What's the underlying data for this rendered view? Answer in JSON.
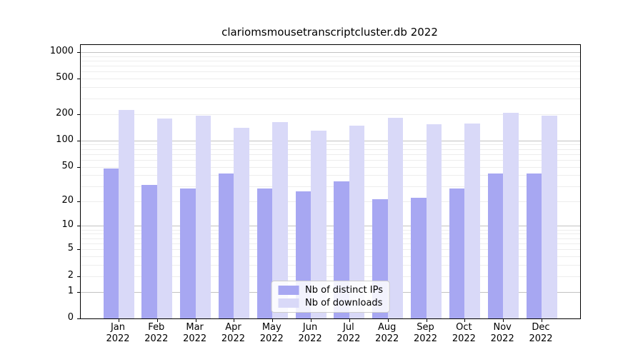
{
  "title": "clariomsmousetranscriptcluster.db 2022",
  "chart_data": {
    "type": "bar",
    "title": "clariomsmousetranscriptcluster.db 2022",
    "categories": [
      "Jan",
      "Feb",
      "Mar",
      "Apr",
      "May",
      "Jun",
      "Jul",
      "Aug",
      "Sep",
      "Oct",
      "Nov",
      "Dec"
    ],
    "year": "2022",
    "series": [
      {
        "name": "Nb of distinct IPs",
        "color": "#a7a7f2",
        "values": [
          48,
          31,
          28,
          42,
          28,
          26,
          34,
          21,
          22,
          28,
          42,
          42
        ]
      },
      {
        "name": "Nb of downloads",
        "color": "#d9d9f8",
        "values": [
          220,
          178,
          192,
          140,
          161,
          130,
          147,
          180,
          152,
          155,
          207,
          192
        ]
      }
    ],
    "yscale": "log1p",
    "yticks": [
      0,
      1,
      2,
      5,
      10,
      20,
      50,
      100,
      200,
      500,
      1000
    ],
    "major_grid_values": [
      1,
      10,
      100,
      1000
    ],
    "ylim": [
      0,
      1200
    ],
    "grid": true,
    "legend_position": "lower center",
    "colors": {
      "axis": "#000000",
      "background": "#ffffff",
      "major_grid": "#c2c2c2",
      "minor_grid": "#ededed",
      "legend_border": "#cccccc"
    }
  }
}
